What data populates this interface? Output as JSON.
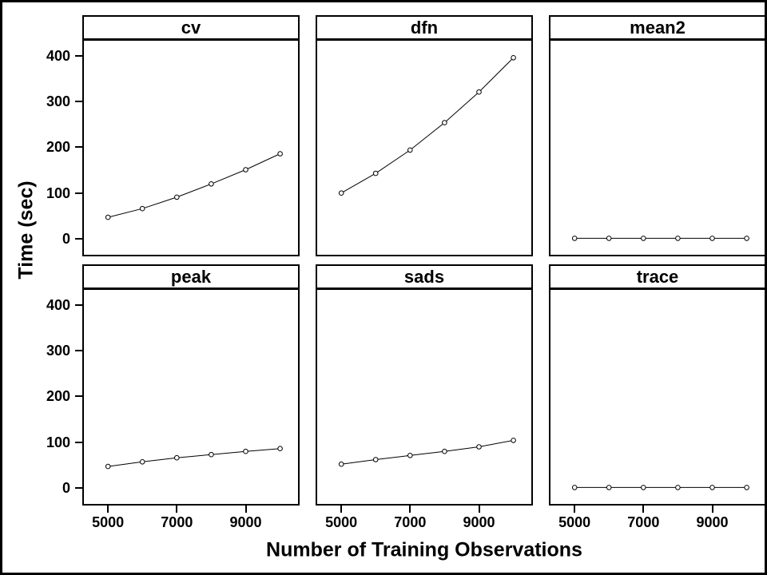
{
  "chart_data": {
    "type": "line",
    "layout": "trellis-2x3",
    "title": "",
    "xlabel": "Number of Training Observations",
    "ylabel": "Time (sec)",
    "x": [
      5000,
      6000,
      7000,
      8000,
      9000,
      10000
    ],
    "x_ticks": [
      5000,
      7000,
      9000
    ],
    "y_ticks": [
      0,
      100,
      200,
      300,
      400
    ],
    "xlim": [
      4300,
      10520
    ],
    "ylim": [
      -35,
      428
    ],
    "marker": "open-circle",
    "line_color": "#000000",
    "grid": "off",
    "panels": [
      {
        "title": "cv",
        "values": [
          47,
          66,
          91,
          120,
          151,
          186
        ]
      },
      {
        "title": "dfn",
        "values": [
          100,
          143,
          194,
          254,
          321,
          396
        ]
      },
      {
        "title": "mean2",
        "values": [
          1,
          1,
          1,
          1,
          1,
          1
        ]
      },
      {
        "title": "peak",
        "values": [
          47,
          57,
          66,
          73,
          80,
          86
        ]
      },
      {
        "title": "sads",
        "values": [
          52,
          62,
          71,
          80,
          90,
          104
        ]
      },
      {
        "title": "trace",
        "values": [
          1,
          1,
          1,
          1,
          1,
          1
        ]
      }
    ]
  }
}
